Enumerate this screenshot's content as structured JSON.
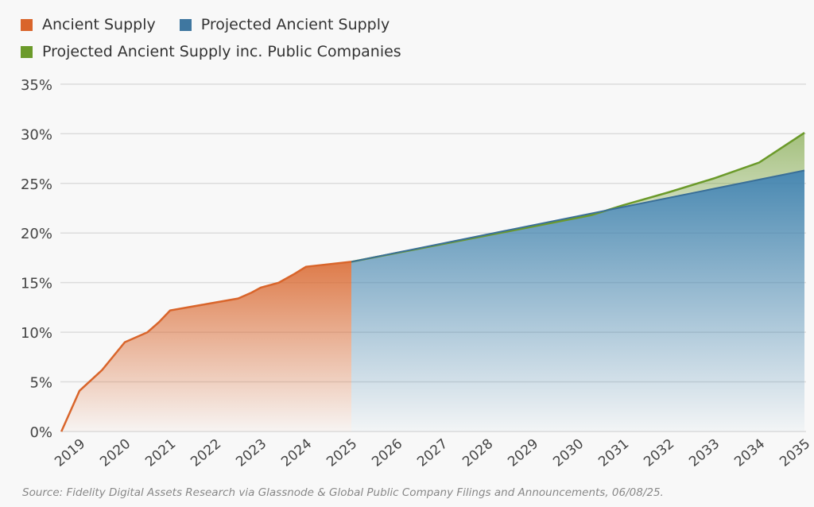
{
  "chart_data": {
    "type": "area",
    "legend": [
      {
        "name": "Ancient Supply",
        "color": "#d9652b"
      },
      {
        "name": "Projected Ancient Supply",
        "color": "#3f77a0"
      },
      {
        "name": "Projected Ancient Supply inc. Public Companies",
        "color": "#6b9a2a"
      }
    ],
    "legend_placement": "top-left",
    "yticks": [
      "0%",
      "5%",
      "10%",
      "15%",
      "20%",
      "25%",
      "30%",
      "35%"
    ],
    "ylim": [
      0,
      35
    ],
    "xticks": [
      "2019",
      "2020",
      "2021",
      "2022",
      "2023",
      "2024",
      "2025",
      "2026",
      "2027",
      "2028",
      "2029",
      "2030",
      "2031",
      "2032",
      "2033",
      "2034",
      "2035"
    ],
    "xlim": [
      2018.6,
      2035
    ],
    "grid": "horizontal",
    "series": [
      {
        "name": "Ancient Supply",
        "points": [
          [
            2018.6,
            0
          ],
          [
            2019,
            4.1
          ],
          [
            2019.5,
            6.2
          ],
          [
            2020,
            9.0
          ],
          [
            2020.5,
            10.0
          ],
          [
            2020.75,
            11.0
          ],
          [
            2021,
            12.2
          ],
          [
            2022,
            13.0
          ],
          [
            2022.5,
            13.4
          ],
          [
            2022.8,
            14.0
          ],
          [
            2023,
            14.5
          ],
          [
            2023.4,
            15.0
          ],
          [
            2023.75,
            15.9
          ],
          [
            2024,
            16.6
          ],
          [
            2025,
            17.1
          ]
        ]
      },
      {
        "name": "Projected Ancient Supply",
        "points": [
          [
            2025,
            17.1
          ],
          [
            2035,
            26.3
          ]
        ]
      },
      {
        "name": "Projected Ancient Supply inc. Public Companies",
        "points": [
          [
            2025,
            17.1
          ],
          [
            2030.3,
            21.8
          ],
          [
            2031,
            22.8
          ],
          [
            2032,
            24.1
          ],
          [
            2033,
            25.5
          ],
          [
            2034,
            27.1
          ],
          [
            2034.5,
            28.6
          ],
          [
            2034.7,
            29.2
          ],
          [
            2035,
            30.1
          ]
        ]
      }
    ],
    "source": "Source: Fidelity Digital Assets Research via Glassnode & Global Public Company Filings and Announcements, 06/08/25."
  }
}
